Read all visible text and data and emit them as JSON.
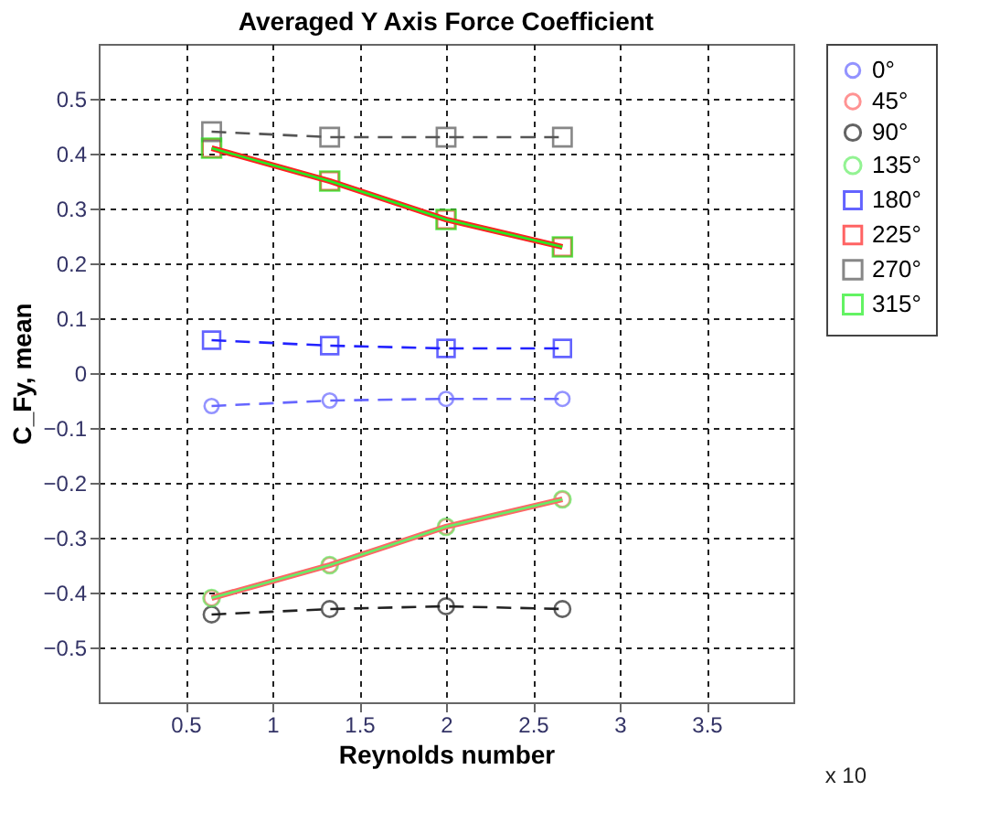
{
  "chart_data": {
    "type": "line",
    "title": "Averaged Y Axis Force Coefficient",
    "xlabel": "Reynolds number",
    "ylabel": "C_Fy, mean",
    "x": [
      0.65,
      1.33,
      2.0,
      2.67
    ],
    "series": [
      {
        "name": "0°",
        "color": "#6666ff",
        "marker": "circle",
        "line_style": "dashed",
        "values": [
          -0.06,
          -0.05,
          -0.047,
          -0.047
        ]
      },
      {
        "name": "45°",
        "color": "#ff6666",
        "marker": "circle",
        "line_style": "solid",
        "values": [
          -0.41,
          -0.35,
          -0.28,
          -0.23
        ]
      },
      {
        "name": "90°",
        "color": "#222222",
        "marker": "circle",
        "line_style": "dashed",
        "values": [
          -0.44,
          -0.43,
          -0.425,
          -0.43
        ]
      },
      {
        "name": "135°",
        "color": "#66ee66",
        "marker": "circle",
        "line_style": "solid",
        "values": [
          -0.41,
          -0.35,
          -0.28,
          -0.23
        ]
      },
      {
        "name": "180°",
        "color": "#2222ff",
        "marker": "square",
        "line_style": "dashed",
        "values": [
          0.06,
          0.05,
          0.045,
          0.045
        ]
      },
      {
        "name": "225°",
        "color": "#ff2222",
        "marker": "square",
        "line_style": "solid",
        "values": [
          0.41,
          0.35,
          0.28,
          0.23
        ]
      },
      {
        "name": "270°",
        "color": "#555555",
        "marker": "square",
        "line_style": "dashed",
        "values": [
          0.44,
          0.43,
          0.43,
          0.43
        ]
      },
      {
        "name": "315°",
        "color": "#22ee22",
        "marker": "square",
        "line_style": "solid",
        "values": [
          0.41,
          0.35,
          0.28,
          0.23
        ]
      }
    ],
    "xlim": [
      0,
      4
    ],
    "xticks": [
      0.5,
      1,
      1.5,
      2,
      2.5,
      3,
      3.5
    ],
    "ylim": [
      -0.6,
      0.6
    ],
    "yticks": [
      -0.5,
      -0.4,
      -0.3,
      -0.2,
      -0.1,
      0,
      0.1,
      0.2,
      0.3,
      0.4,
      0.5
    ],
    "grid": true,
    "legend": "right",
    "annotations": [
      "x 10"
    ]
  }
}
